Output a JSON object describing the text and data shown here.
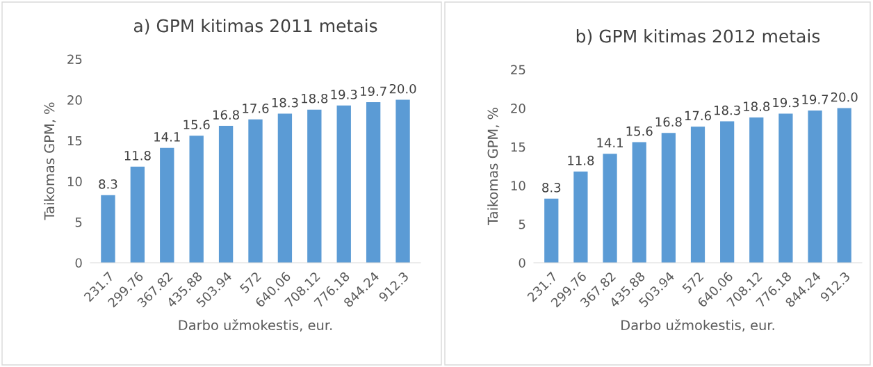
{
  "chart_data": [
    {
      "type": "bar",
      "title": "a) GPM kitimas 2011 metais",
      "xlabel": "Darbo užmokestis, eur.",
      "ylabel": "Taikomas GPM, %",
      "categories": [
        "231.7",
        "299.76",
        "367.82",
        "435.88",
        "503.94",
        "572",
        "640.06",
        "708.12",
        "776.18",
        "844.24",
        "912.3"
      ],
      "values": [
        8.3,
        11.8,
        14.1,
        15.6,
        16.8,
        17.6,
        18.3,
        18.8,
        19.3,
        19.7,
        20.0
      ],
      "value_labels": [
        "8.3",
        "11.8",
        "14.1",
        "15.6",
        "16.8",
        "17.6",
        "18.3",
        "18.8",
        "19.3",
        "19.7",
        "20.0"
      ],
      "color": "#5b9bd5",
      "ylim": [
        0,
        25
      ],
      "yticks": [
        0,
        5,
        10,
        15,
        20,
        25
      ],
      "grid": false
    },
    {
      "type": "bar",
      "title": "b) GPM kitimas 2012 metais",
      "xlabel": "Darbo užmokestis, eur.",
      "ylabel": "Taikomas GPM, %",
      "categories": [
        "231.7",
        "299.76",
        "367.82",
        "435.88",
        "503.94",
        "572",
        "640.06",
        "708.12",
        "776.18",
        "844.24",
        "912.3"
      ],
      "values": [
        8.3,
        11.8,
        14.1,
        15.6,
        16.8,
        17.6,
        18.3,
        18.8,
        19.3,
        19.7,
        20.0
      ],
      "value_labels": [
        "8.3",
        "11.8",
        "14.1",
        "15.6",
        "16.8",
        "17.6",
        "18.3",
        "18.8",
        "19.3",
        "19.7",
        "20.0"
      ],
      "color": "#5b9bd5",
      "ylim": [
        0,
        25
      ],
      "yticks": [
        0,
        5,
        10,
        15,
        20,
        25
      ],
      "grid": false
    }
  ]
}
